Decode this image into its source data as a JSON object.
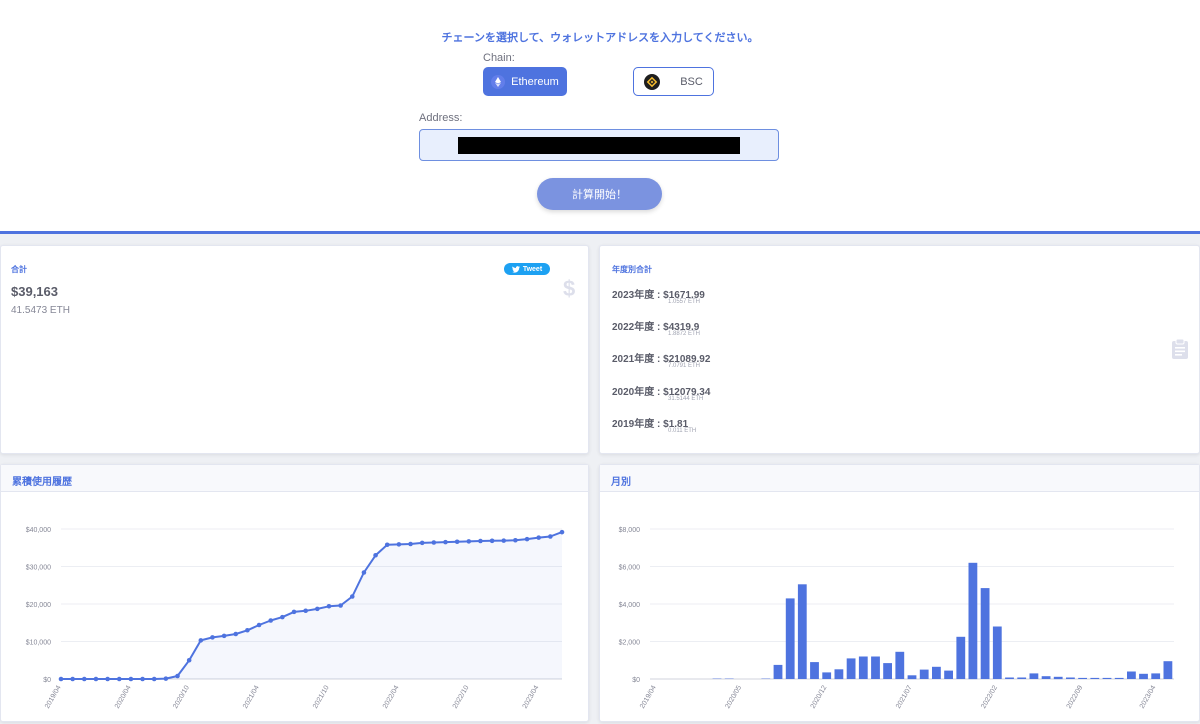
{
  "form": {
    "instruction": "チェーンを選択して、ウォレットアドレスを入力してください。",
    "chain_label": "Chain:",
    "chains": [
      {
        "label": "Ethereum",
        "icon": "ethereum-icon",
        "selected": true
      },
      {
        "label": "BSC",
        "icon": "bnb-icon",
        "selected": false
      }
    ],
    "address_label": "Address:",
    "start_button": "計算開始！"
  },
  "summary": {
    "title": "合計",
    "usd": "$39,163",
    "eth": "41.5473 ETH",
    "tweet_label": "Tweet"
  },
  "yearly": {
    "title": "年度別合計",
    "rows": [
      {
        "label": "2023年度 : $1671.99",
        "eth": "1.0557 ETH"
      },
      {
        "label": "2022年度 : $4319.9",
        "eth": "1.8872 ETH"
      },
      {
        "label": "2021年度 : $21089.92",
        "eth": "7.0791 ETH"
      },
      {
        "label": "2020年度 : $12079.34",
        "eth": "31.5144 ETH"
      },
      {
        "label": "2019年度 : $1.81",
        "eth": "0.011 ETH"
      }
    ]
  },
  "colors": {
    "accent": "#4e73df",
    "bar": "#4e73df",
    "line": "#4e73df"
  },
  "chart_data": [
    {
      "type": "line",
      "title": "累積使用履歴",
      "y_ticks": [
        "$0",
        "$10,000",
        "$20,000",
        "$30,000",
        "$40,000"
      ],
      "ylim": [
        0,
        40000
      ],
      "x_tick_labels": [
        "2019/04",
        "2020/04",
        "2020/10",
        "2021/04",
        "2021/10",
        "2022/04",
        "2022/10",
        "2023/04"
      ],
      "x_tick_index": [
        0,
        6,
        11,
        17,
        23,
        29,
        35,
        41
      ],
      "values": [
        0,
        0,
        0,
        0,
        0,
        0,
        0,
        0,
        0,
        100,
        800,
        5000,
        10300,
        11100,
        11500,
        12000,
        13000,
        14400,
        15600,
        16500,
        17900,
        18200,
        18700,
        19400,
        19600,
        22000,
        28400,
        33000,
        35800,
        35900,
        36000,
        36300,
        36400,
        36500,
        36600,
        36700,
        36800,
        36850,
        36900,
        37000,
        37300,
        37700,
        38000,
        39163
      ],
      "fill": true,
      "grid": true
    },
    {
      "type": "bar",
      "title": "月別",
      "y_ticks": [
        "$0",
        "$2,000",
        "$4,000",
        "$6,000",
        "$8,000"
      ],
      "ylim": [
        0,
        8000
      ],
      "x_tick_labels": [
        "2019/04",
        "2020/05",
        "2020/12",
        "2021/07",
        "2022/02",
        "2022/09",
        "2023/04"
      ],
      "x_tick_index": [
        0,
        7,
        14,
        21,
        28,
        35,
        41
      ],
      "values": [
        0,
        0,
        0,
        0,
        0,
        20,
        20,
        0,
        0,
        20,
        750,
        4300,
        5050,
        900,
        350,
        520,
        1100,
        1200,
        1200,
        850,
        1450,
        200,
        500,
        650,
        450,
        2250,
        6200,
        4850,
        2800,
        80,
        80,
        300,
        150,
        120,
        80,
        60,
        60,
        60,
        60,
        400,
        280,
        300,
        950
      ],
      "grid": true
    }
  ]
}
